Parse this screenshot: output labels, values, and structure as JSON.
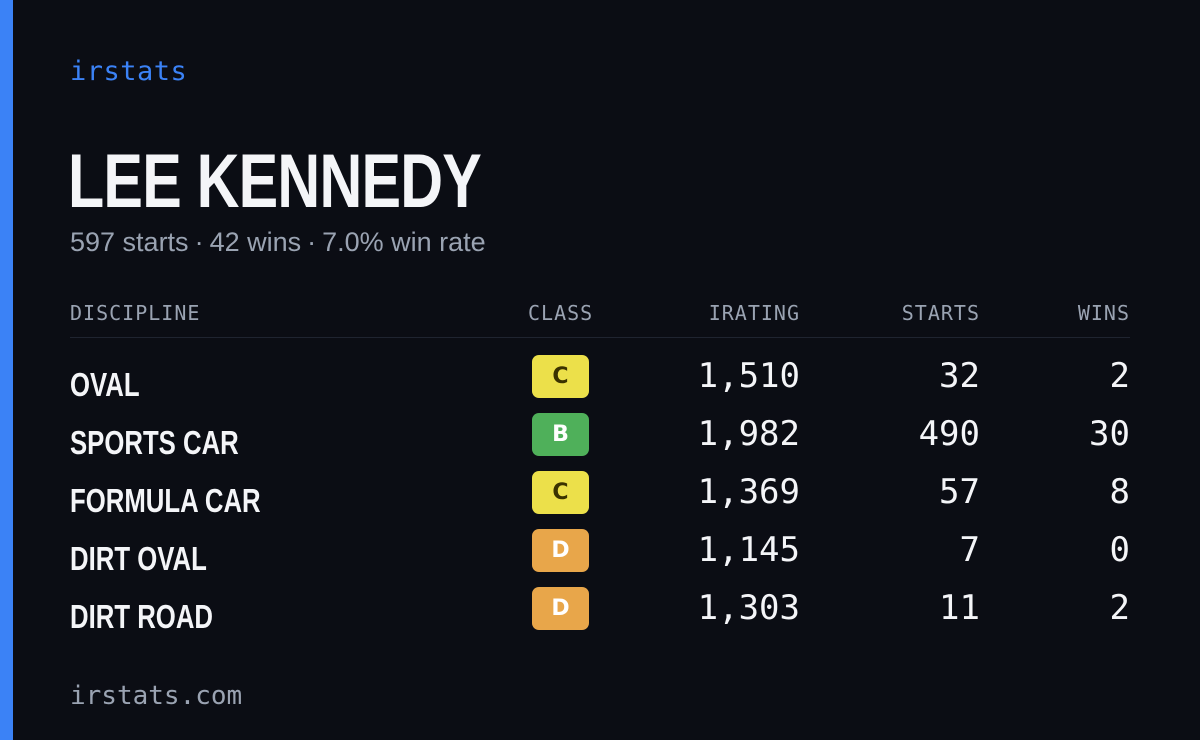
{
  "brand": "irstats",
  "driver_name": "LEE KENNEDY",
  "summary": {
    "starts": "597 starts",
    "wins": "42 wins",
    "win_rate": "7.0% win rate",
    "separator": "·"
  },
  "table": {
    "headers": {
      "discipline": "DISCIPLINE",
      "class": "CLASS",
      "irating": "IRATING",
      "starts": "STARTS",
      "wins": "WINS"
    },
    "rows": [
      {
        "discipline": "OVAL",
        "class": "C",
        "class_color": "#ece04a",
        "class_text_color": "#3a3200",
        "irating": "1,510",
        "starts": "32",
        "wins": "2"
      },
      {
        "discipline": "SPORTS CAR",
        "class": "B",
        "class_color": "#4fb05a",
        "class_text_color": "#ffffff",
        "irating": "1,982",
        "starts": "490",
        "wins": "30"
      },
      {
        "discipline": "FORMULA CAR",
        "class": "C",
        "class_color": "#ece04a",
        "class_text_color": "#3a3200",
        "irating": "1,369",
        "starts": "57",
        "wins": "8"
      },
      {
        "discipline": "DIRT OVAL",
        "class": "D",
        "class_color": "#e8a64a",
        "class_text_color": "#ffffff",
        "irating": "1,145",
        "starts": "7",
        "wins": "0"
      },
      {
        "discipline": "DIRT ROAD",
        "class": "D",
        "class_color": "#e8a64a",
        "class_text_color": "#ffffff",
        "irating": "1,303",
        "starts": "11",
        "wins": "2"
      }
    ]
  },
  "footer": "irstats.com",
  "colors": {
    "background": "#0b0d14",
    "accent": "#3b82f6",
    "text": "#f4f5f8",
    "muted": "#9aa3b2"
  }
}
